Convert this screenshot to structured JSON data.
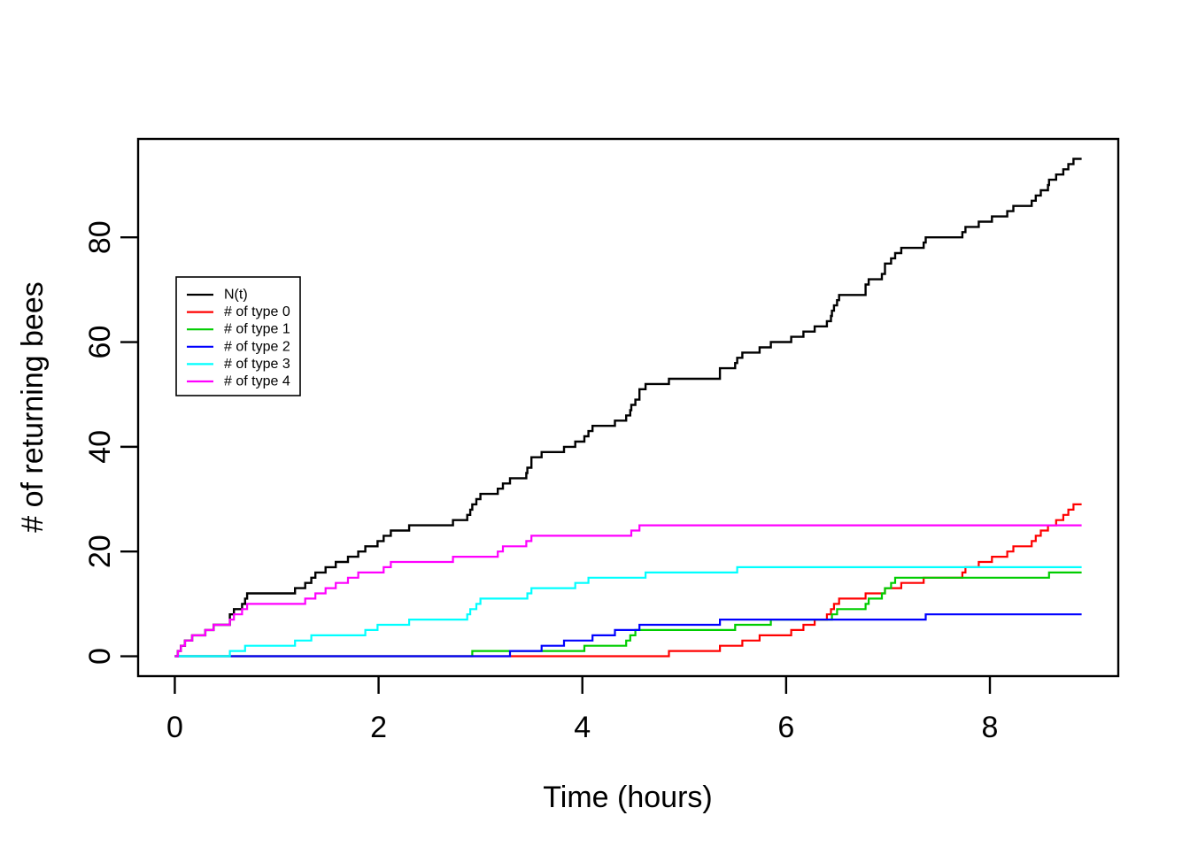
{
  "chart_data": {
    "type": "line",
    "subtype": "step-counting-process",
    "title": "",
    "xlabel": "Time (hours)",
    "ylabel": "# of returning bees",
    "xlim": [
      -0.36,
      9.26
    ],
    "ylim": [
      -3.8,
      98.8
    ],
    "x_ticks": [
      0,
      2,
      4,
      6,
      8
    ],
    "y_ticks": [
      0,
      20,
      40,
      60,
      80
    ],
    "grid": false,
    "background": "#ffffff",
    "axis_color": "#000000",
    "legend_position": "upper-left-inside",
    "t_start": 0,
    "t_end": 8.9,
    "total_series": {
      "label": "N(t)",
      "color": "#000000",
      "is_sum_of_components": true,
      "final_count": 95
    },
    "series": [
      {
        "label": "# of type 0",
        "color": "#FF0000",
        "final_count": 29,
        "arrival_times": [
          4.85,
          5.35,
          5.57,
          5.74,
          6.05,
          6.17,
          6.28,
          6.4,
          6.44,
          6.47,
          6.52,
          6.78,
          6.97,
          7.13,
          7.35,
          7.73,
          7.76,
          7.89,
          8.02,
          8.17,
          8.23,
          8.41,
          8.45,
          8.5,
          8.57,
          8.65,
          8.72,
          8.77,
          8.82
        ]
      },
      {
        "label": "# of type 1",
        "color": "#00CD00",
        "final_count": 16,
        "arrival_times": [
          2.92,
          4.02,
          4.43,
          4.47,
          4.52,
          5.5,
          5.85,
          6.45,
          6.5,
          6.78,
          6.81,
          6.94,
          6.97,
          7.03,
          7.07,
          8.58
        ]
      },
      {
        "label": "# of type 2",
        "color": "#0000FF",
        "final_count": 8,
        "arrival_times": [
          3.29,
          3.6,
          3.82,
          4.1,
          4.32,
          4.56,
          5.35,
          7.37
        ]
      },
      {
        "label": "# of type 3",
        "color": "#00FFFF",
        "final_count": 17,
        "arrival_times": [
          0.54,
          0.69,
          1.18,
          1.34,
          1.87,
          1.99,
          2.3,
          2.87,
          2.9,
          2.96,
          3.0,
          3.46,
          3.5,
          3.93,
          4.06,
          4.62,
          5.52
        ]
      },
      {
        "label": "# of type 4",
        "color": "#FF00FF",
        "final_count": 25,
        "arrival_times": [
          0.03,
          0.06,
          0.1,
          0.17,
          0.3,
          0.38,
          0.54,
          0.58,
          0.66,
          0.71,
          1.28,
          1.38,
          1.48,
          1.58,
          1.7,
          1.8,
          2.05,
          2.12,
          2.73,
          3.17,
          3.22,
          3.45,
          3.5,
          4.48,
          4.56
        ]
      }
    ]
  }
}
